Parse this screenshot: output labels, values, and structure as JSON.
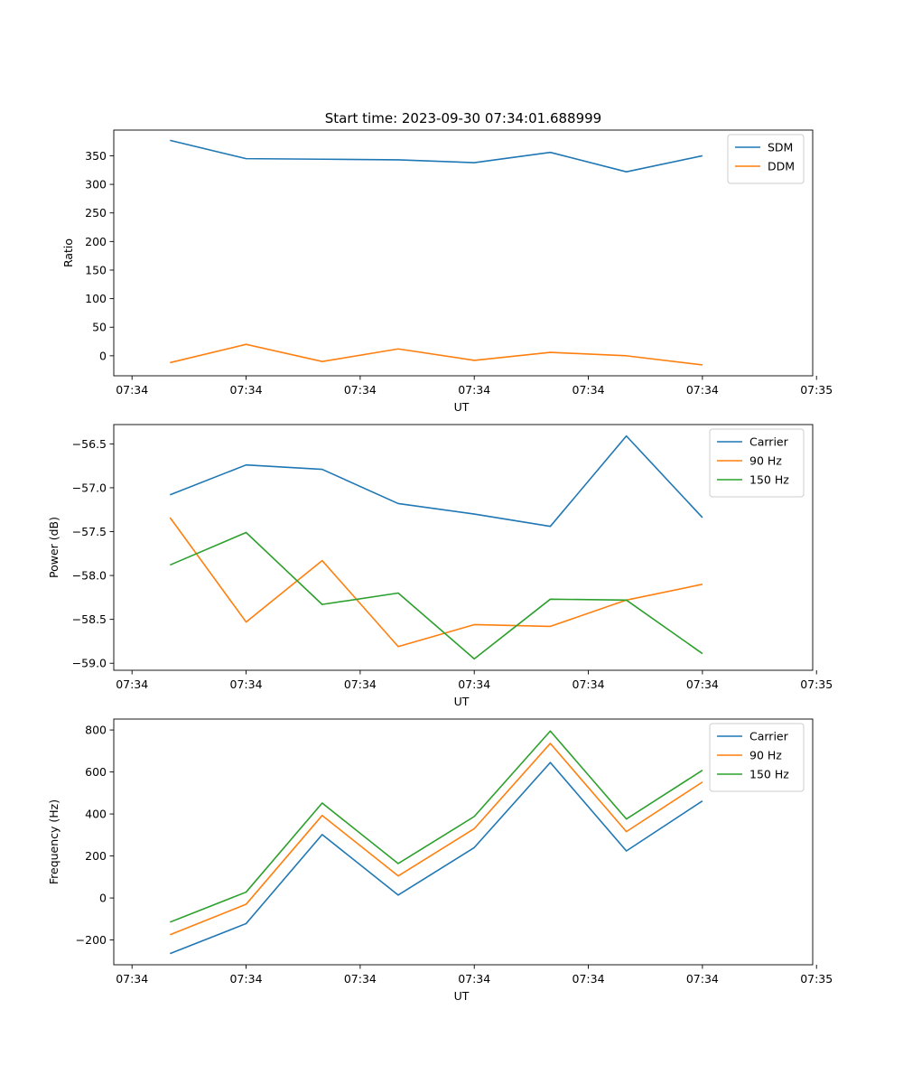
{
  "title": "Start time: 2023-09-30 07:34:01.688999",
  "colors": {
    "blue": "#1f77b4",
    "orange": "#ff7f0e",
    "green": "#2ca02c"
  },
  "chart_data": [
    {
      "type": "line",
      "title": "Start time: 2023-09-30 07:34:01.688999",
      "xlabel": "UT",
      "ylabel": "Ratio",
      "x_tick_labels": [
        "07:34",
        "07:34",
        "07:34",
        "07:34",
        "07:34",
        "07:34",
        "07:35"
      ],
      "x": [
        1,
        2,
        3,
        4,
        5,
        6,
        7,
        8
      ],
      "xlim": [
        0.26,
        9.45
      ],
      "ylim": [
        -35,
        395
      ],
      "yticks": [
        0,
        50,
        100,
        150,
        200,
        250,
        300,
        350
      ],
      "legend_loc": "upper right",
      "series": [
        {
          "name": "SDM",
          "color": "#1f77b4",
          "values": [
            377,
            345,
            344,
            343,
            338,
            356,
            322,
            350
          ]
        },
        {
          "name": "DDM",
          "color": "#ff7f0e",
          "values": [
            -12,
            20,
            -10,
            12,
            -8,
            6,
            0,
            -16
          ]
        }
      ]
    },
    {
      "type": "line",
      "xlabel": "UT",
      "ylabel": "Power (dB)",
      "x_tick_labels": [
        "07:34",
        "07:34",
        "07:34",
        "07:34",
        "07:34",
        "07:34",
        "07:35"
      ],
      "x": [
        1,
        2,
        3,
        4,
        5,
        6,
        7,
        8
      ],
      "xlim": [
        0.26,
        9.45
      ],
      "ylim": [
        -59.08,
        -56.28
      ],
      "yticks": [
        -59.0,
        -58.5,
        -58.0,
        -57.5,
        -57.0,
        -56.5
      ],
      "ytick_labels": [
        "−59.0",
        "−58.5",
        "−58.0",
        "−57.5",
        "−57.0",
        "−56.5"
      ],
      "legend_loc": "upper right",
      "series": [
        {
          "name": "Carrier",
          "color": "#1f77b4",
          "values": [
            -57.08,
            -56.74,
            -56.79,
            -57.18,
            -57.3,
            -57.44,
            -56.41,
            -57.34
          ]
        },
        {
          "name": "90 Hz",
          "color": "#ff7f0e",
          "values": [
            -57.34,
            -58.53,
            -57.83,
            -58.81,
            -58.56,
            -58.58,
            -58.28,
            -58.1
          ]
        },
        {
          "name": "150 Hz",
          "color": "#2ca02c",
          "values": [
            -57.88,
            -57.51,
            -58.33,
            -58.2,
            -58.95,
            -58.27,
            -58.28,
            -58.89
          ]
        }
      ]
    },
    {
      "type": "line",
      "xlabel": "UT",
      "ylabel": "Frequency (Hz)",
      "x_tick_labels": [
        "07:34",
        "07:34",
        "07:34",
        "07:34",
        "07:34",
        "07:34",
        "07:35"
      ],
      "x": [
        1,
        2,
        3,
        4,
        5,
        6,
        7,
        8
      ],
      "xlim": [
        0.26,
        9.45
      ],
      "ylim": [
        -318,
        852
      ],
      "yticks": [
        -200,
        0,
        200,
        400,
        600,
        800
      ],
      "ytick_labels": [
        "−200",
        "0",
        "200",
        "400",
        "600",
        "800"
      ],
      "legend_loc": "upper right",
      "series": [
        {
          "name": "Carrier",
          "color": "#1f77b4",
          "values": [
            -265,
            -122,
            302,
            14,
            240,
            645,
            224,
            462
          ]
        },
        {
          "name": "90 Hz",
          "color": "#ff7f0e",
          "values": [
            -175,
            -30,
            393,
            105,
            330,
            736,
            316,
            552
          ]
        },
        {
          "name": "150 Hz",
          "color": "#2ca02c",
          "values": [
            -115,
            28,
            452,
            164,
            388,
            795,
            376,
            608
          ]
        }
      ]
    }
  ]
}
